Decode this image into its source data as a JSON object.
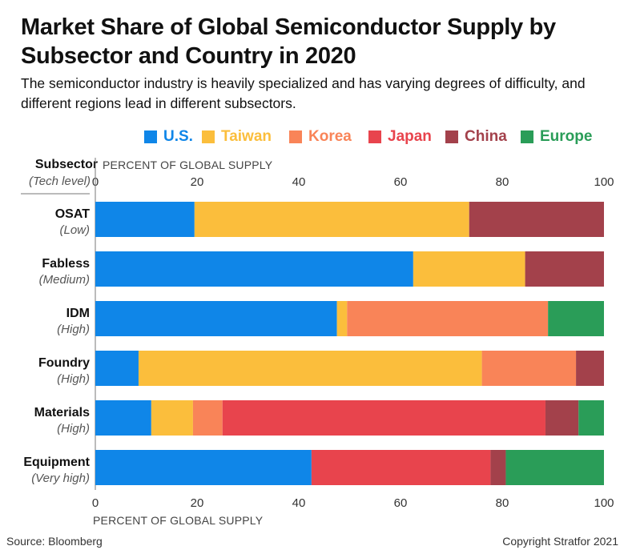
{
  "header": {
    "title": "Market Share of Global Semiconductor Supply by Subsector and Country in 2020",
    "subtitle": "The semiconductor industry is heavily specialized and has varying degrees of difficulty, and different regions lead in different subsectors."
  },
  "footer": {
    "source": "Source: Bloomberg",
    "copyright": "Copyright Stratfor 2021"
  },
  "chart_data": {
    "type": "bar",
    "orientation": "horizontal",
    "stacked": true,
    "title": "Market Share of Global Semiconductor Supply by Subsector and Country in 2020",
    "subtitle": "The semiconductor industry is heavily specialized and has varying degrees of difficulty, and different regions lead in different subsectors.",
    "xlabel": "PERCENT OF GLOBAL SUPPLY",
    "ylabel": "Subsector",
    "ylabel_note": "(Tech level)",
    "xlim": [
      0,
      100
    ],
    "xticks": [
      0,
      20,
      40,
      60,
      80,
      100
    ],
    "categories": [
      "OSAT",
      "Fabless",
      "IDM",
      "Foundry",
      "Materials",
      "Equipment"
    ],
    "category_notes": [
      "(Low)",
      "(Medium)",
      "(High)",
      "(High)",
      "(High)",
      "(Very high)"
    ],
    "legend_position": "top-center",
    "grid": false,
    "series": [
      {
        "name": "U.S.",
        "color": "#0f86e8",
        "values": [
          19.5,
          62.5,
          47.5,
          8.5,
          11,
          42.5
        ]
      },
      {
        "name": "Taiwan",
        "color": "#fbbe3c",
        "values": [
          54,
          22,
          2,
          67.5,
          8.2,
          0
        ]
      },
      {
        "name": "Korea",
        "color": "#f98458",
        "values": [
          0,
          0,
          39.5,
          18.5,
          5.8,
          0
        ]
      },
      {
        "name": "Japan",
        "color": "#e8444d",
        "values": [
          0,
          0,
          0,
          0,
          63.5,
          35.2
        ]
      },
      {
        "name": "China",
        "color": "#a3414b",
        "values": [
          26.5,
          15.5,
          0,
          5.5,
          6.5,
          3
        ]
      },
      {
        "name": "Europe",
        "color": "#2a9d58",
        "values": [
          0,
          0,
          11,
          0,
          5,
          19.3
        ]
      }
    ]
  }
}
